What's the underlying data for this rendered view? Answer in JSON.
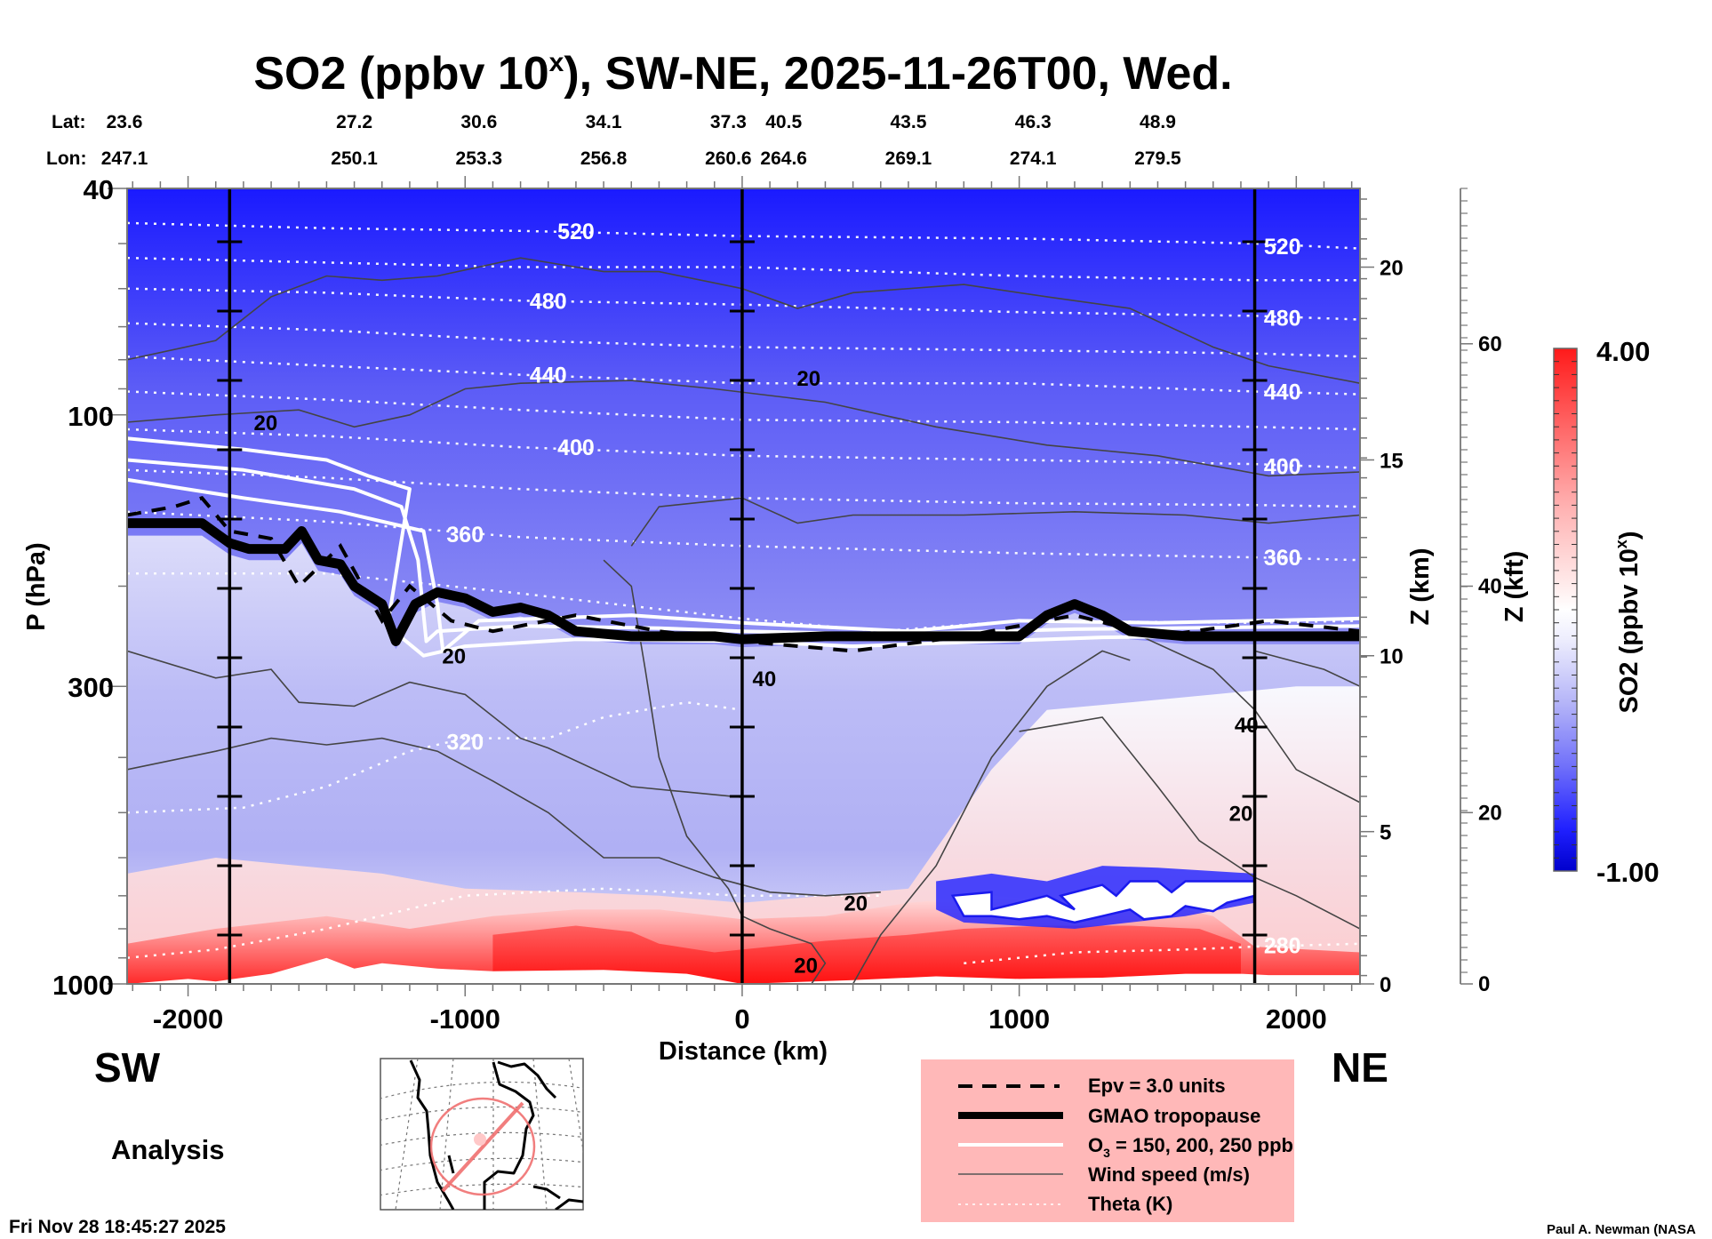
{
  "chart_data": {
    "type": "heatmap",
    "subtype": "vertical cross-section contour plot",
    "title": "SO2 (ppbv 10ˣ), SW-NE, 2025-11-26T00, Wed.",
    "title_parts": {
      "main": "SO2 (ppbv 10",
      "sup": "x",
      "rest": "), SW-NE, 2025-11-26T00, Wed."
    },
    "xlabel": "Distance (km)",
    "ylabel": "P (hPa)",
    "y2label": "Z (km)",
    "y3label": "Z (kft)",
    "xlim": [
      -2220,
      2230
    ],
    "ylim": [
      1000,
      40
    ],
    "yscale": "log",
    "x_ticks": [
      -2000,
      -1000,
      0,
      1000,
      2000
    ],
    "x_tick_labels": [
      "-2000",
      "-1000",
      "0",
      "1000",
      "2000"
    ],
    "y_ticks": [
      40,
      100,
      300,
      1000
    ],
    "y_tick_labels": [
      "40",
      "100",
      "300",
      "1000"
    ],
    "z_km_ticks": [
      0,
      5,
      10,
      15,
      20
    ],
    "z_km_tick_pressures": [
      1000,
      540,
      265,
      120,
      55
    ],
    "z_kft_ticks": [
      0,
      20,
      40,
      60
    ],
    "z_kft_tick_pressures": [
      1000,
      500,
      200,
      75
    ],
    "vertical_reference_lines_km": [
      -1850,
      0,
      1850
    ],
    "header": {
      "lat_label": "Lat:",
      "lon_label": "Lon:",
      "positions_km": [
        -1850,
        -1400,
        -950,
        -500,
        -50,
        150,
        600,
        1050,
        1500
      ],
      "lat": [
        "23.6",
        "27.2",
        "30.6",
        "34.1",
        "37.3",
        "40.5",
        "43.5",
        "46.3",
        "48.9"
      ],
      "lon": [
        "247.1",
        "250.1",
        "253.3",
        "256.8",
        "260.6",
        "264.6",
        "269.1",
        "274.1",
        "279.5"
      ]
    },
    "colorbar": {
      "label": "SO2 (ppbv 10ˣ)",
      "label_main": "SO2 (ppbv 10",
      "label_sup": "x",
      "label_rest": ")",
      "min": -1.0,
      "max": 4.0,
      "min_label": "-1.00",
      "max_label": "4.00",
      "levels": 40,
      "colors": {
        "min": "#0000cc",
        "mid": "#ffffff",
        "max": "#ff0000"
      }
    },
    "theta_contours_K": [
      {
        "value": 520,
        "label": "520",
        "points": [
          [
            -2220,
            46
          ],
          [
            -1500,
            47
          ],
          [
            -800,
            47.5
          ],
          [
            0,
            48.5
          ],
          [
            1000,
            49
          ],
          [
            1850,
            50
          ],
          [
            2230,
            51
          ]
        ],
        "labels_at": [
          [
            -600,
            47.5
          ],
          [
            1950,
            50.5
          ]
        ]
      },
      {
        "value": 500,
        "points": [
          [
            -2220,
            53
          ],
          [
            -1500,
            54
          ],
          [
            -800,
            55
          ],
          [
            0,
            55
          ],
          [
            1000,
            57
          ],
          [
            1850,
            58
          ],
          [
            2230,
            58
          ]
        ]
      },
      {
        "value": 480,
        "label": "480",
        "points": [
          [
            -2220,
            60
          ],
          [
            -1500,
            61
          ],
          [
            -800,
            63
          ],
          [
            0,
            64
          ],
          [
            1000,
            66
          ],
          [
            1850,
            67
          ],
          [
            2230,
            68
          ]
        ],
        "labels_at": [
          [
            -700,
            63
          ],
          [
            1950,
            67.5
          ]
        ]
      },
      {
        "value": 460,
        "points": [
          [
            -2220,
            69
          ],
          [
            -1500,
            71
          ],
          [
            -800,
            74
          ],
          [
            0,
            76
          ],
          [
            1000,
            77
          ],
          [
            1850,
            78
          ],
          [
            2230,
            79
          ]
        ]
      },
      {
        "value": 440,
        "label": "440",
        "points": [
          [
            -2220,
            79
          ],
          [
            -1500,
            82
          ],
          [
            -800,
            85
          ],
          [
            0,
            88
          ],
          [
            1000,
            88
          ],
          [
            1850,
            91
          ],
          [
            2230,
            92
          ]
        ],
        "labels_at": [
          [
            -700,
            85
          ],
          [
            1950,
            91
          ]
        ]
      },
      {
        "value": 420,
        "points": [
          [
            -2220,
            91
          ],
          [
            -1500,
            94
          ],
          [
            -800,
            98
          ],
          [
            0,
            102
          ],
          [
            1000,
            103
          ],
          [
            1850,
            105
          ],
          [
            2230,
            106
          ]
        ]
      },
      {
        "value": 400,
        "label": "400",
        "points": [
          [
            -2220,
            106
          ],
          [
            -1500,
            109
          ],
          [
            -800,
            114
          ],
          [
            0,
            118
          ],
          [
            1000,
            120
          ],
          [
            1850,
            122
          ],
          [
            2230,
            124
          ]
        ],
        "labels_at": [
          [
            -600,
            114
          ],
          [
            1950,
            123
          ]
        ]
      },
      {
        "value": 380,
        "points": [
          [
            -2220,
            125
          ],
          [
            -1500,
            129
          ],
          [
            -800,
            135
          ],
          [
            0,
            140
          ],
          [
            1000,
            143
          ],
          [
            1850,
            144
          ],
          [
            2230,
            145
          ]
        ]
      },
      {
        "value": 360,
        "label": "360",
        "points": [
          [
            -2220,
            148
          ],
          [
            -1500,
            154
          ],
          [
            -800,
            164
          ],
          [
            0,
            170
          ],
          [
            1000,
            175
          ],
          [
            1850,
            178
          ],
          [
            2230,
            180
          ]
        ],
        "labels_at": [
          [
            -1000,
            162
          ],
          [
            1950,
            178
          ]
        ]
      },
      {
        "value": 340,
        "points": [
          [
            -2220,
            190
          ],
          [
            -1500,
            190
          ],
          [
            -800,
            206
          ],
          [
            0,
            228
          ],
          [
            500,
            240
          ],
          [
            1000,
            230
          ],
          [
            1850,
            232
          ],
          [
            2230,
            230
          ]
        ]
      },
      {
        "value": 320,
        "label": "320",
        "points": [
          [
            -2220,
            500
          ],
          [
            -1800,
            490
          ],
          [
            -1500,
            450
          ],
          [
            -1200,
            390
          ],
          [
            -1000,
            370
          ],
          [
            -700,
            370
          ],
          [
            -500,
            340
          ],
          [
            -200,
            320
          ],
          [
            0,
            330
          ]
        ],
        "labels_at": [
          [
            -1000,
            375
          ]
        ]
      },
      {
        "value": 300,
        "points": [
          [
            -2220,
            900
          ],
          [
            -1900,
            870
          ],
          [
            -1500,
            800
          ],
          [
            -1000,
            700
          ],
          [
            -500,
            680
          ],
          [
            0,
            700
          ],
          [
            500,
            700
          ]
        ]
      },
      {
        "value": 280,
        "label": "280",
        "points": [
          [
            800,
            920
          ],
          [
            1200,
            880
          ],
          [
            1600,
            870
          ],
          [
            1850,
            860
          ],
          [
            2230,
            850
          ]
        ],
        "labels_at": [
          [
            1950,
            855
          ]
        ]
      }
    ],
    "wind_speed_contours_ms": [
      {
        "value": 20,
        "label": "20",
        "labels_at": [
          [
            -1720,
            103
          ],
          [
            240,
            86
          ],
          [
            -1040,
            265
          ],
          [
            410,
            720
          ],
          [
            230,
            925
          ],
          [
            1800,
            500
          ]
        ]
      },
      {
        "value": 40,
        "label": "40",
        "labels_at": [
          [
            80,
            290
          ],
          [
            1820,
            350
          ]
        ]
      }
    ],
    "tropopause_hPa": [
      [
        -2220,
        155
      ],
      [
        -1950,
        155
      ],
      [
        -1850,
        168
      ],
      [
        -1780,
        172
      ],
      [
        -1650,
        172
      ],
      [
        -1590,
        160
      ],
      [
        -1530,
        180
      ],
      [
        -1450,
        183
      ],
      [
        -1400,
        200
      ],
      [
        -1300,
        215
      ],
      [
        -1250,
        250
      ],
      [
        -1180,
        215
      ],
      [
        -1100,
        205
      ],
      [
        -1000,
        210
      ],
      [
        -900,
        222
      ],
      [
        -800,
        218
      ],
      [
        -700,
        225
      ],
      [
        -600,
        240
      ],
      [
        -400,
        245
      ],
      [
        -100,
        245
      ],
      [
        0,
        248
      ],
      [
        300,
        245
      ],
      [
        900,
        245
      ],
      [
        1000,
        245
      ],
      [
        1100,
        225
      ],
      [
        1200,
        215
      ],
      [
        1300,
        225
      ],
      [
        1400,
        240
      ],
      [
        1600,
        245
      ],
      [
        1900,
        245
      ],
      [
        2230,
        245
      ]
    ],
    "epv_3pvu_hPa": [
      [
        -2220,
        150
      ],
      [
        -2050,
        145
      ],
      [
        -1950,
        140
      ],
      [
        -1850,
        160
      ],
      [
        -1700,
        165
      ],
      [
        -1600,
        200
      ],
      [
        -1450,
        170
      ],
      [
        -1300,
        230
      ],
      [
        -1200,
        200
      ],
      [
        -1050,
        230
      ],
      [
        -900,
        240
      ],
      [
        -600,
        225
      ],
      [
        -300,
        240
      ],
      [
        0,
        250
      ],
      [
        400,
        260
      ],
      [
        800,
        245
      ],
      [
        1200,
        225
      ],
      [
        1500,
        245
      ],
      [
        1900,
        230
      ],
      [
        2230,
        240
      ]
    ],
    "o3_contours_ppb": [
      {
        "value": 150,
        "points": [
          [
            -2220,
            130
          ],
          [
            -1800,
            140
          ],
          [
            -1450,
            148
          ],
          [
            -1150,
            160
          ],
          [
            -1100,
            215
          ],
          [
            -1080,
            260
          ],
          [
            -950,
            230
          ],
          [
            -400,
            225
          ],
          [
            0,
            232
          ],
          [
            600,
            240
          ],
          [
            1000,
            230
          ],
          [
            1500,
            232
          ],
          [
            2230,
            228
          ]
        ]
      },
      {
        "value": 200,
        "points": [
          [
            -2220,
            120
          ],
          [
            -1800,
            125
          ],
          [
            -1400,
            135
          ],
          [
            -1230,
            145
          ],
          [
            -1170,
            180
          ],
          [
            -1140,
            250
          ],
          [
            -1100,
            240
          ],
          [
            -800,
            235
          ],
          [
            -300,
            237
          ],
          [
            0,
            240
          ],
          [
            500,
            243
          ],
          [
            1200,
            238
          ],
          [
            2230,
            235
          ]
        ]
      },
      {
        "value": 250,
        "points": [
          [
            -2220,
            110
          ],
          [
            -1800,
            115
          ],
          [
            -1500,
            120
          ],
          [
            -1350,
            128
          ],
          [
            -1200,
            135
          ],
          [
            -1280,
            235
          ],
          [
            -1150,
            265
          ],
          [
            -1000,
            255
          ],
          [
            -600,
            248
          ],
          [
            0,
            250
          ],
          [
            400,
            255
          ],
          [
            1300,
            246
          ],
          [
            2230,
            243
          ]
        ]
      }
    ],
    "so2_field_description": "Stratosphere (40-250 hPa) negative values (deep blue at top fading to light blue); troposphere mostly weakly negative; positive (red) SO2 near surface below ~600 hPa, strongest (~4) at 700-1000 hPa between 600 and 1700 km; masked (white) patches near 650 hPa between 600 and 1500 km and below ground.",
    "legend": {
      "placement": "bottom-center",
      "background": "#ffb8b8",
      "items": [
        {
          "style": "dashed-black",
          "label": "Epv = 3.0 units"
        },
        {
          "style": "thick-black",
          "label": "GMAO tropopause"
        },
        {
          "style": "white-solid",
          "label_main": "O",
          "label_sub": "3",
          "label_rest": " = 150, 200, 250 ppb"
        },
        {
          "style": "thin-gray",
          "label": "Wind speed (m/s)"
        },
        {
          "style": "dotted-white",
          "label": "Theta (K)"
        }
      ]
    },
    "direction_labels": {
      "left": "SW",
      "right": "NE"
    },
    "product_label": "Analysis",
    "map_inset": {
      "description": "North America polar-stereographic map with SW-NE transect line and range circle",
      "accent_color": "#f07070"
    }
  },
  "footer": {
    "timestamp": "Fri Nov 28 18:45:27 2025",
    "credit": "Paul A. Newman (NASA"
  }
}
